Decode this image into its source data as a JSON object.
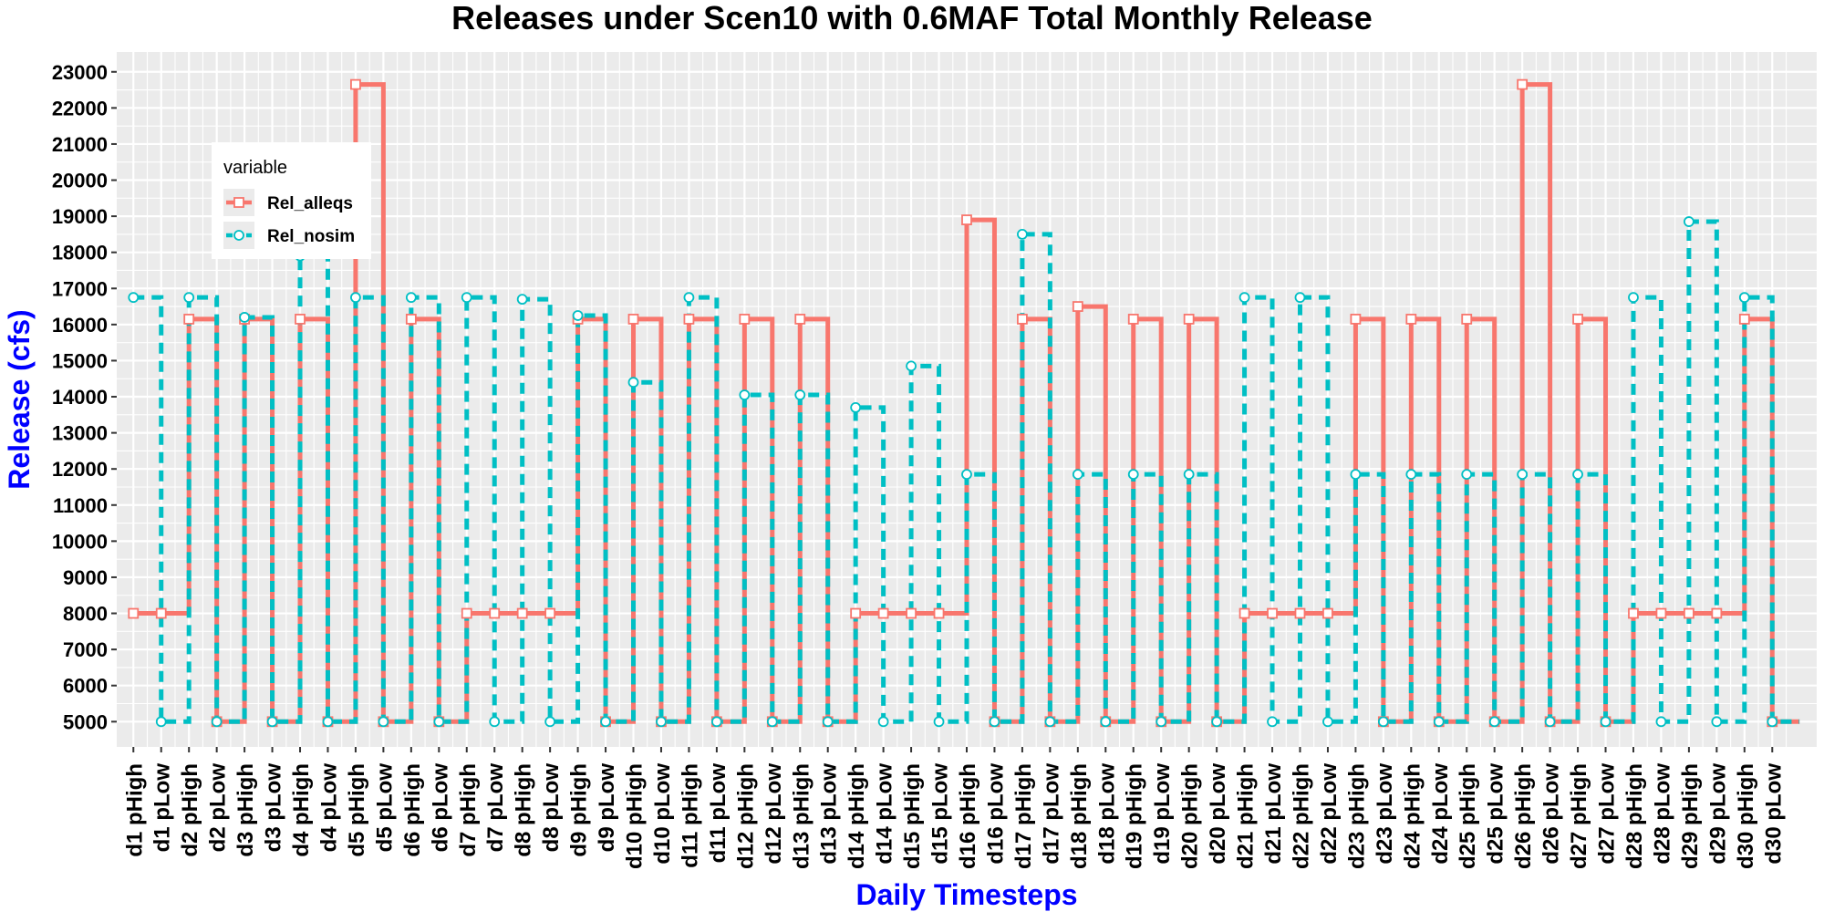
{
  "chart_data": {
    "type": "line",
    "step": true,
    "title": "Releases under Scen10 with 0.6MAF Total Monthly Release",
    "xlabel": "Daily Timesteps",
    "ylabel": "Release (cfs)",
    "ylim": [
      4300,
      23550
    ],
    "yticks": [
      5000,
      6000,
      7000,
      8000,
      9000,
      10000,
      11000,
      12000,
      13000,
      14000,
      15000,
      16000,
      17000,
      18000,
      19000,
      20000,
      21000,
      22000,
      23000
    ],
    "grid": true,
    "legend_position": "top-left",
    "legend_title": "variable",
    "categories": [
      "d1 pHigh",
      "d1 pLow",
      "d2 pHigh",
      "d2 pLow",
      "d3 pHigh",
      "d3 pLow",
      "d4 pHigh",
      "d4 pLow",
      "d5 pHigh",
      "d5 pLow",
      "d6 pHigh",
      "d6 pLow",
      "d7 pHigh",
      "d7 pLow",
      "d8 pHigh",
      "d8 pLow",
      "d9 pHigh",
      "d9 pLow",
      "d10 pHigh",
      "d10 pLow",
      "d11 pHigh",
      "d11 pLow",
      "d12 pHigh",
      "d12 pLow",
      "d13 pHigh",
      "d13 pLow",
      "d14 pHigh",
      "d14 pLow",
      "d15 pHigh",
      "d15 pLow",
      "d16 pHigh",
      "d16 pLow",
      "d17 pHigh",
      "d17 pLow",
      "d18 pHigh",
      "d18 pLow",
      "d19 pHigh",
      "d19 pLow",
      "d20 pHigh",
      "d20 pLow",
      "d21 pHigh",
      "d21 pLow",
      "d22 pHigh",
      "d22 pLow",
      "d23 pHigh",
      "d23 pLow",
      "d24 pHigh",
      "d24 pLow",
      "d25 pHigh",
      "d25 pLow",
      "d26 pHigh",
      "d26 pLow",
      "d27 pHigh",
      "d27 pLow",
      "d28 pHigh",
      "d28 pLow",
      "d29 pHigh",
      "d29 pLow",
      "d30 pHigh",
      "d30 pLow"
    ],
    "series": [
      {
        "name": "Rel_alleqs",
        "color": "#f8766d",
        "marker": "square",
        "dash": "solid",
        "values": [
          8000,
          8000,
          16150,
          5000,
          16150,
          5000,
          16150,
          5000,
          22650,
          5000,
          16150,
          5000,
          8000,
          8000,
          8000,
          8000,
          16150,
          5000,
          16150,
          5000,
          16150,
          5000,
          16150,
          5000,
          16150,
          5000,
          8000,
          8000,
          8000,
          8000,
          18900,
          5000,
          16150,
          5000,
          16500,
          5000,
          16150,
          5000,
          16150,
          5000,
          8000,
          8000,
          8000,
          8000,
          16150,
          5000,
          16150,
          5000,
          16150,
          5000,
          22650,
          5000,
          16150,
          5000,
          8000,
          8000,
          8000,
          8000,
          16150,
          5000
        ]
      },
      {
        "name": "Rel_nosim",
        "color": "#00bfc4",
        "marker": "circle",
        "dash": "dashed",
        "values": [
          16750,
          5000,
          16750,
          5000,
          16200,
          5000,
          17900,
          5000,
          16750,
          5000,
          16750,
          5000,
          16750,
          5000,
          16700,
          5000,
          16250,
          5000,
          14400,
          5000,
          16750,
          5000,
          14050,
          5000,
          14050,
          5000,
          13700,
          5000,
          14850,
          5000,
          11850,
          5000,
          18500,
          5000,
          11850,
          5000,
          11850,
          5000,
          11850,
          5000,
          16750,
          5000,
          16750,
          5000,
          11850,
          5000,
          11850,
          5000,
          11850,
          5000,
          11850,
          5000,
          11850,
          5000,
          16750,
          5000,
          18850,
          5000,
          16750,
          5000
        ]
      }
    ]
  }
}
